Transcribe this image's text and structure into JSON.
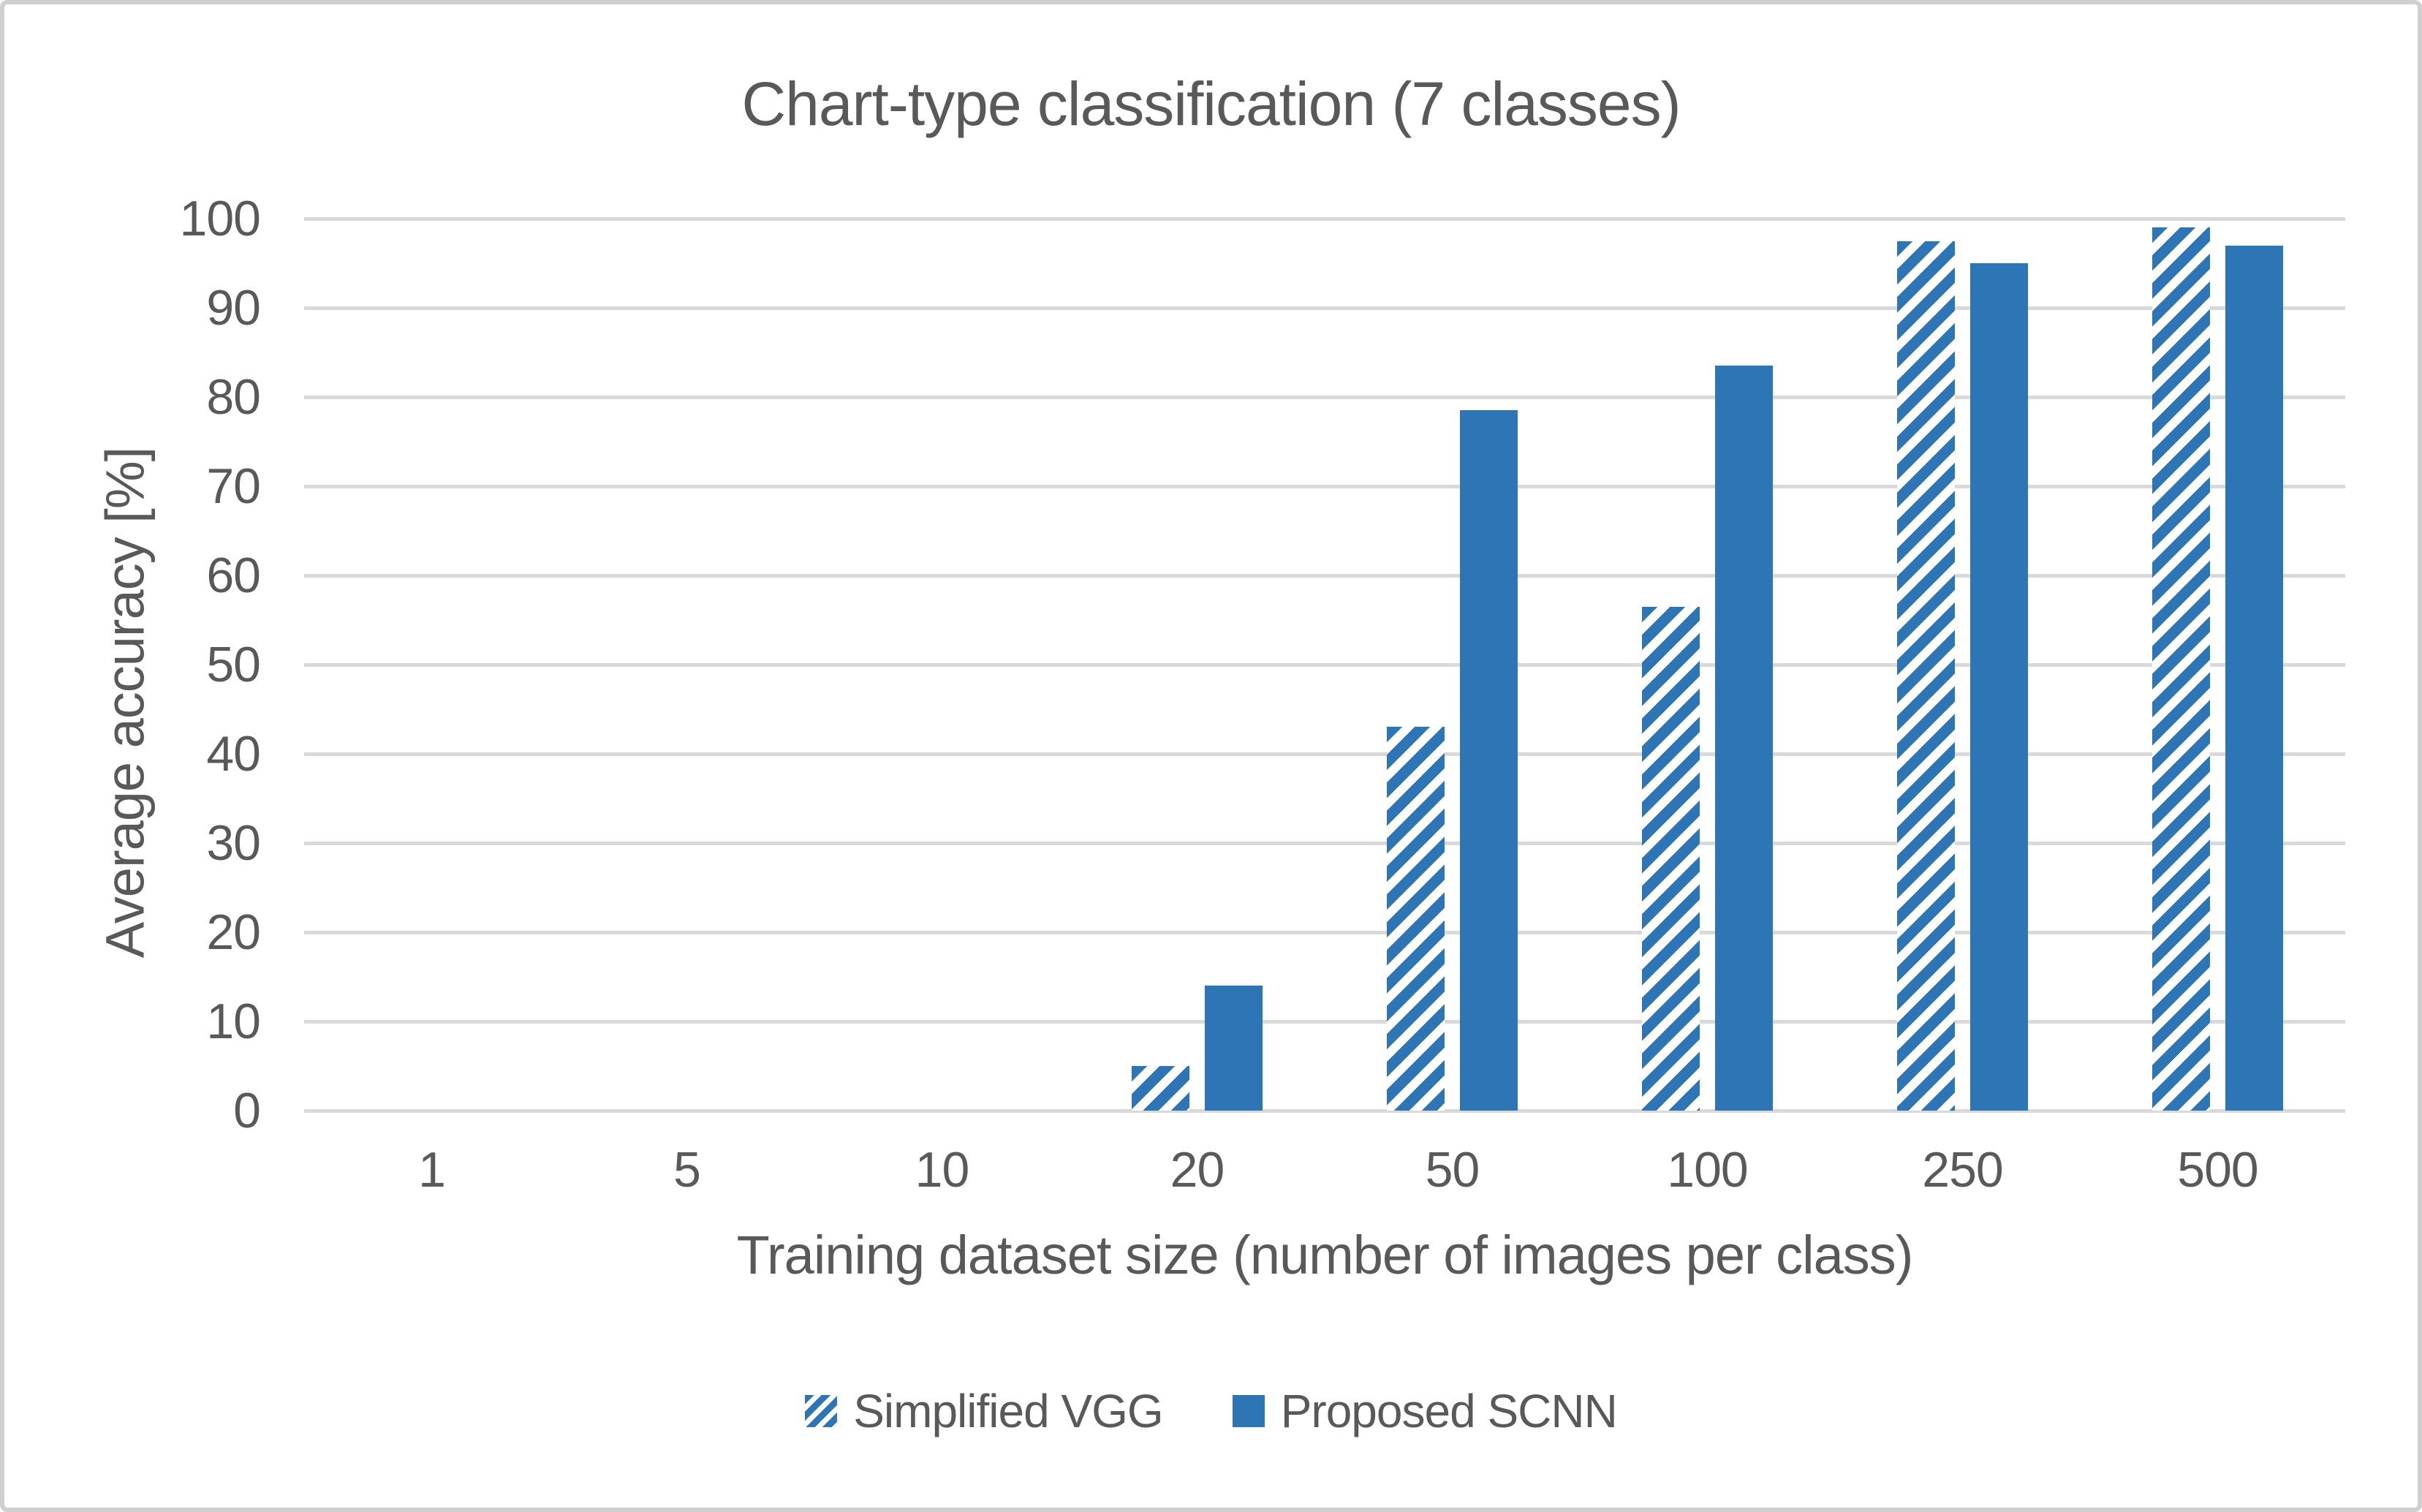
{
  "title": "Chart-type classification (7 classes)",
  "colors": {
    "bar_blue": "#2E75B6",
    "grid": "#D9D9D9",
    "text": "#595959",
    "figure_border": "#CFCFCF"
  },
  "legend": {
    "items": [
      {
        "label": "Simplified VGG",
        "pattern": "hatched"
      },
      {
        "label": "Proposed SCNN",
        "pattern": "solid"
      }
    ]
  },
  "chart_data": {
    "type": "bar",
    "title": "Chart-type classification (7 classes)",
    "categories": [
      "1",
      "5",
      "10",
      "20",
      "50",
      "100",
      "250",
      "500"
    ],
    "series": [
      {
        "name": "Simplified VGG",
        "pattern": "hatched",
        "values": [
          0,
          0,
          0,
          5,
          43,
          56.5,
          97.5,
          99
        ]
      },
      {
        "name": "Proposed SCNN",
        "pattern": "solid",
        "values": [
          0,
          0,
          0,
          14,
          78.5,
          83.5,
          95,
          97
        ]
      }
    ],
    "xlabel": "Training dataset size (number of images per class)",
    "ylabel": "Average accuracy [%]",
    "ylim": [
      0,
      100
    ],
    "ytick_step": 10,
    "grid": true,
    "legend_position": "bottom"
  }
}
